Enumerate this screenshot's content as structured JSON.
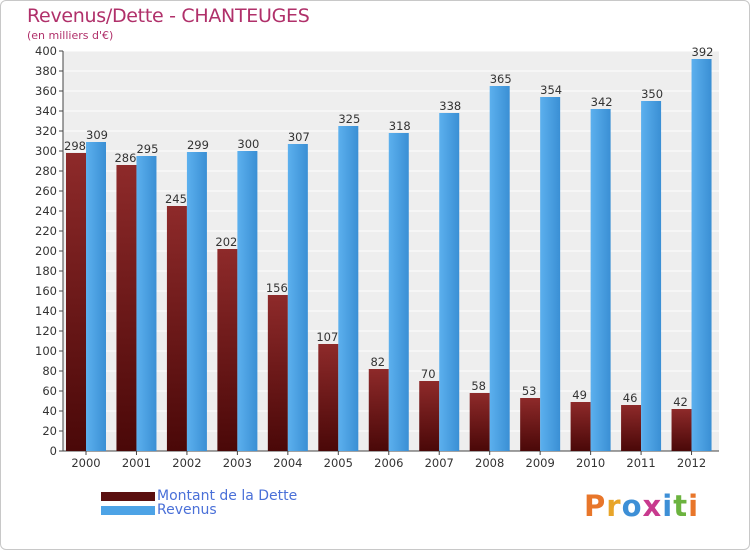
{
  "chart_data": {
    "type": "bar",
    "title": "Revenus/Dette - CHANTEUGES",
    "subtitle": "(en milliers d'€)",
    "categories": [
      "2000",
      "2001",
      "2002",
      "2003",
      "2004",
      "2005",
      "2006",
      "2007",
      "2008",
      "2009",
      "2010",
      "2011",
      "2012"
    ],
    "series": [
      {
        "name": "Montant de la Dette",
        "color": "#7a1a1a",
        "values": [
          298,
          286,
          245,
          202,
          156,
          107,
          82,
          70,
          58,
          53,
          49,
          46,
          42
        ]
      },
      {
        "name": "Revenus",
        "color": "#4da3e6",
        "values": [
          309,
          295,
          299,
          300,
          307,
          325,
          318,
          338,
          365,
          354,
          342,
          350,
          392
        ]
      }
    ],
    "ylim": [
      0,
      400
    ],
    "ytick_step": 20,
    "grid": true,
    "legend_position": "bottom-left"
  },
  "brand": {
    "logo_text": "Proxiti",
    "letter_colors": [
      "#e8762a",
      "#e8a52a",
      "#3d8fd6",
      "#c83a8e",
      "#3d8fd6",
      "#6cb33f",
      "#e8762a"
    ]
  }
}
